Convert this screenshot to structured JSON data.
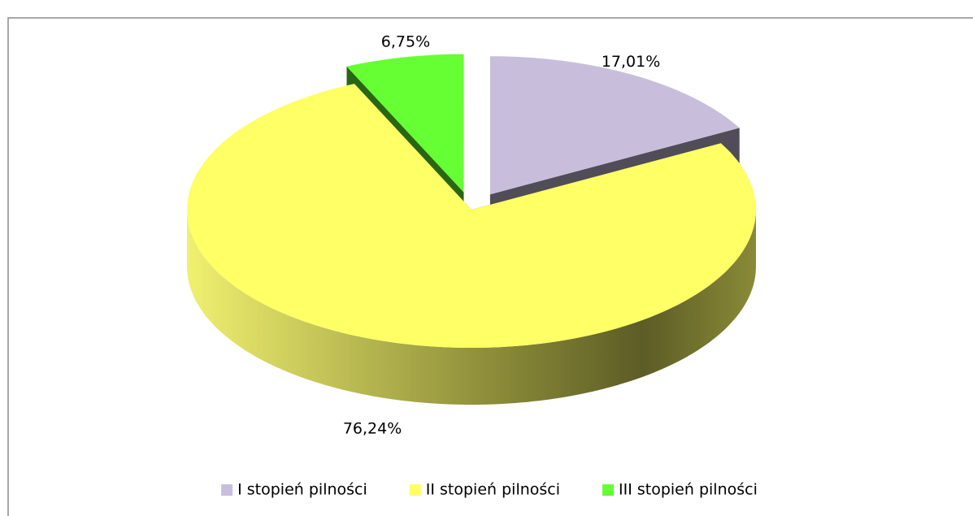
{
  "chart_data": {
    "type": "pie3d",
    "categories": [
      "I stopień pilności",
      "II stopień pilności",
      "III stopień pilności"
    ],
    "values": [
      17.01,
      76.24,
      6.75
    ],
    "value_labels": [
      "17,01%",
      "76,24%",
      "6,75%"
    ],
    "colors": [
      "#c8bedc",
      "#ffff66",
      "#66ff33"
    ],
    "exploded": [
      true,
      false,
      true
    ],
    "legend": "bottom"
  }
}
